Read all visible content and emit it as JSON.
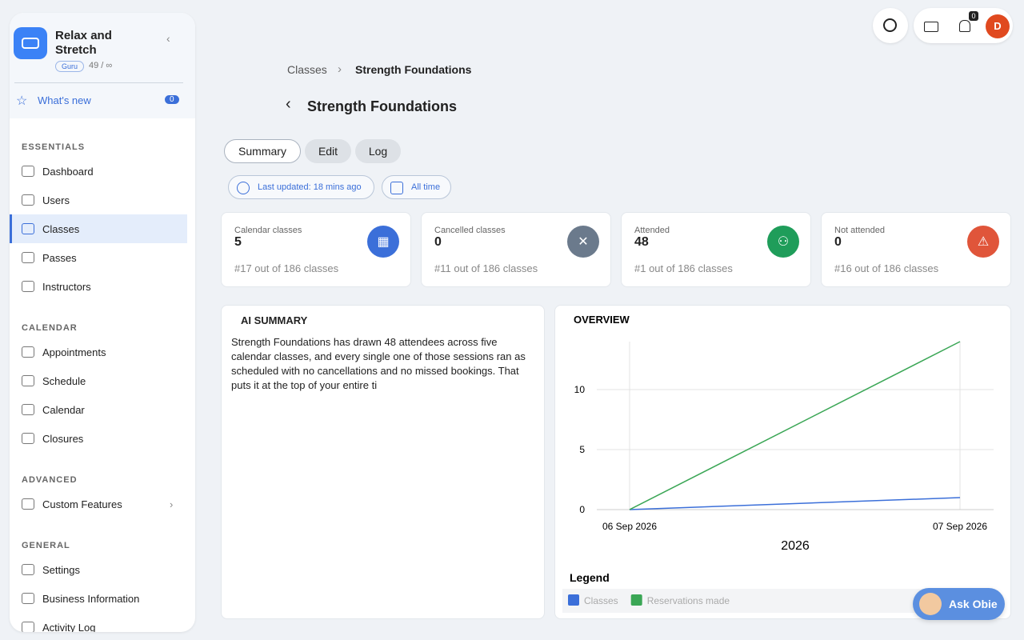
{
  "sidebar": {
    "brand": {
      "name": "Relax and Stretch",
      "badge": "Guru",
      "quota": "49 / ∞"
    },
    "whats_new": {
      "label": "What's new",
      "count": 0
    },
    "sections": [
      {
        "title": "ESSENTIALS",
        "items": [
          "Dashboard",
          "Users",
          "Classes",
          "Passes",
          "Instructors"
        ]
      },
      {
        "title": "CALENDAR",
        "items": [
          "Appointments",
          "Schedule",
          "Calendar",
          "Closures"
        ]
      },
      {
        "title": "ADVANCED",
        "items": [
          "Custom Features"
        ]
      },
      {
        "title": "GENERAL",
        "items": [
          "Settings",
          "Business Information",
          "Activity Log"
        ]
      }
    ]
  },
  "topbar": {
    "notifications": 0,
    "avatar": "D"
  },
  "breadcrumb": [
    "Classes",
    "Strength Foundations"
  ],
  "page_title": "Strength Foundations",
  "tabs": [
    "Summary",
    "Edit",
    "Log"
  ],
  "filters": [
    "Last updated: 18 mins ago",
    "All time"
  ],
  "stats": [
    {
      "label": "Calendar classes",
      "value": 5,
      "rank": "#17 out of 186 classes"
    },
    {
      "label": "Cancelled classes",
      "value": 0,
      "rank": "#11 out of 186 classes"
    },
    {
      "label": "Attended",
      "value": 48,
      "rank": "#1 out of 186 classes"
    },
    {
      "label": "Not attended",
      "value": 0,
      "rank": "#16 out of 186 classes"
    }
  ],
  "ai_summary": {
    "title": "AI SUMMARY",
    "text": "Strength Foundations has drawn 48 attendees across five calendar classes, and every single one of those sessions ran as scheduled with no cancellations and no missed bookings. That puts it at the top of your entire ti"
  },
  "chart_data": {
    "type": "line",
    "title": "OVERVIEW",
    "x": [
      "06 Sep 2026",
      "07 Sep 2026"
    ],
    "xlabel": "2026",
    "ylim": [
      0,
      14
    ],
    "yticks": [
      0,
      5,
      10
    ],
    "grid": true,
    "legend_title": "Legend",
    "series": [
      {
        "name": "Classes",
        "color": "#3b6fd9",
        "values": [
          0,
          1
        ]
      },
      {
        "name": "Reservations made",
        "color": "#3aa655",
        "values": [
          0,
          14
        ]
      }
    ]
  },
  "ask_obie": "Ask Obie"
}
